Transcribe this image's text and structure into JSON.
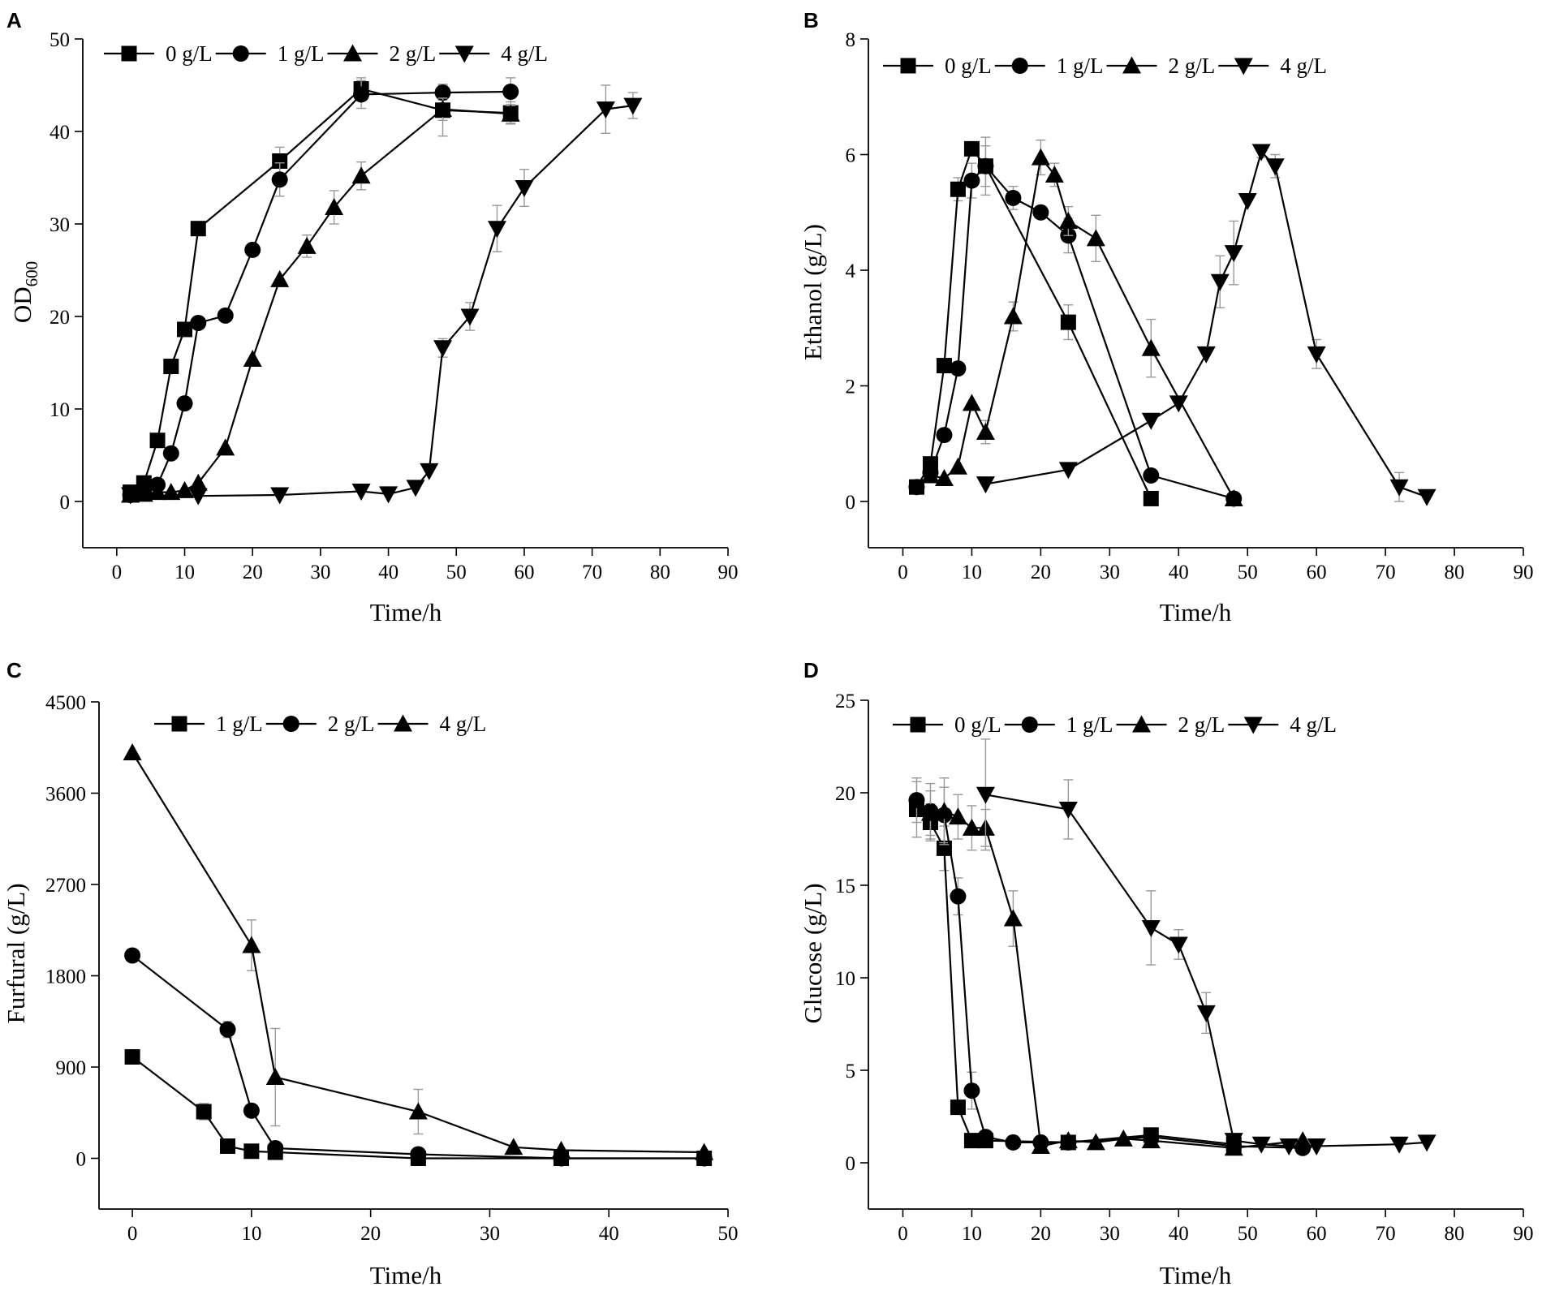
{
  "figure": {
    "background": "#ffffff",
    "ink": "#000000",
    "error_bar_color": "#999999"
  },
  "chart_data": [
    {
      "id": "A",
      "panel_label": "A",
      "type": "line",
      "ylabel_main": "OD",
      "ylabel_sub": "600",
      "xlabel": "Time/h",
      "xlim": [
        -5,
        90
      ],
      "ylim": [
        -5,
        50
      ],
      "xticks": [
        0,
        10,
        20,
        30,
        40,
        50,
        60,
        70,
        80,
        90
      ],
      "yticks": [
        0,
        10,
        20,
        30,
        40,
        50
      ],
      "grid": false,
      "legend_position": "top-left",
      "series": [
        {
          "name": "0 g/L",
          "marker": "square",
          "x": [
            2,
            4,
            6,
            8,
            10,
            12,
            24,
            36,
            48,
            58
          ],
          "y": [
            1.0,
            2.0,
            6.6,
            14.6,
            18.6,
            29.5,
            36.8,
            44.6,
            42.3,
            42.0
          ],
          "err": [
            0,
            0,
            0,
            0,
            0,
            0,
            1.5,
            1.2,
            2.8,
            1.2
          ]
        },
        {
          "name": "1 g/L",
          "marker": "circle",
          "x": [
            2,
            4,
            6,
            8,
            10,
            12,
            16,
            20,
            24,
            36,
            48,
            58
          ],
          "y": [
            0.7,
            1.0,
            1.8,
            5.2,
            10.6,
            19.3,
            20.1,
            27.2,
            34.8,
            44.0,
            44.2,
            44.3
          ],
          "err": [
            0,
            0,
            0,
            0,
            0,
            0,
            0,
            0,
            1.8,
            1.5,
            0.8,
            1.5
          ]
        },
        {
          "name": "2 g/L",
          "marker": "triangle-up",
          "x": [
            2,
            4,
            6,
            8,
            10,
            12,
            16,
            20,
            24,
            28,
            32,
            36,
            48,
            58
          ],
          "y": [
            0.7,
            0.8,
            1.0,
            1.0,
            1.2,
            2.0,
            5.8,
            15.4,
            24.0,
            27.6,
            31.8,
            35.2,
            42.4,
            41.9
          ],
          "err": [
            0,
            0,
            0,
            0,
            0,
            0,
            0,
            0,
            0,
            1.2,
            1.8,
            1.5,
            1.2,
            1.0
          ]
        },
        {
          "name": "4 g/L",
          "marker": "triangle-down",
          "x": [
            2,
            12,
            24,
            36,
            40,
            44,
            46,
            48,
            52,
            56,
            60,
            72,
            76
          ],
          "y": [
            0.7,
            0.6,
            0.7,
            1.1,
            0.8,
            1.5,
            3.3,
            16.6,
            20.0,
            29.5,
            33.9,
            42.4,
            42.8
          ],
          "err": [
            0,
            0,
            0,
            0,
            0,
            0,
            0,
            1.0,
            1.5,
            2.5,
            2.0,
            2.6,
            1.4
          ]
        }
      ]
    },
    {
      "id": "B",
      "panel_label": "B",
      "type": "line",
      "ylabel_main": "Ethanol (g/L)",
      "ylabel_sub": "",
      "xlabel": "Time/h",
      "xlim": [
        -5,
        90
      ],
      "ylim": [
        -0.8,
        8
      ],
      "xticks": [
        0,
        10,
        20,
        30,
        40,
        50,
        60,
        70,
        80,
        90
      ],
      "yticks": [
        0,
        2,
        4,
        6,
        8
      ],
      "grid": false,
      "legend_position": "top",
      "series": [
        {
          "name": "0 g/L",
          "marker": "square",
          "x": [
            2,
            4,
            6,
            8,
            10,
            12,
            24,
            36
          ],
          "y": [
            0.25,
            0.65,
            2.35,
            5.4,
            6.1,
            5.8,
            3.1,
            0.05
          ],
          "err": [
            0,
            0,
            0,
            0.2,
            0,
            0.35,
            0.3,
            0
          ]
        },
        {
          "name": "1 g/L",
          "marker": "circle",
          "x": [
            2,
            4,
            6,
            8,
            10,
            12,
            16,
            20,
            24,
            36,
            48
          ],
          "y": [
            0.25,
            0.5,
            1.15,
            2.3,
            5.55,
            5.8,
            5.25,
            5.0,
            4.6,
            0.45,
            0.05
          ],
          "err": [
            0,
            0,
            0,
            0,
            0.3,
            0.5,
            0.2,
            0,
            0.3,
            0,
            0
          ]
        },
        {
          "name": "2 g/L",
          "marker": "triangle-up",
          "x": [
            4,
            6,
            8,
            10,
            12,
            16,
            20,
            22,
            24,
            28,
            36,
            48
          ],
          "y": [
            0.45,
            0.4,
            0.6,
            1.7,
            1.2,
            3.2,
            5.95,
            5.65,
            4.85,
            4.55,
            2.65,
            0.05
          ],
          "err": [
            0,
            0,
            0,
            0,
            0.2,
            0.25,
            0.3,
            0.2,
            0.25,
            0.4,
            0.5,
            0
          ]
        },
        {
          "name": "4 g/L",
          "marker": "triangle-down",
          "x": [
            12,
            24,
            36,
            40,
            44,
            46,
            48,
            50,
            52,
            54,
            60,
            72,
            76
          ],
          "y": [
            0.3,
            0.55,
            1.4,
            1.7,
            2.55,
            3.8,
            4.3,
            5.2,
            6.05,
            5.8,
            2.55,
            0.25,
            0.08
          ],
          "err": [
            0,
            0,
            0,
            0,
            0,
            0.45,
            0.55,
            0,
            0.1,
            0.2,
            0.25,
            0.25,
            0
          ]
        }
      ]
    },
    {
      "id": "C",
      "panel_label": "C",
      "type": "line",
      "ylabel_main": "Furfural (g/L)",
      "ylabel_sub": "",
      "xlabel": "Time/h",
      "xlim": [
        -2.8,
        50
      ],
      "ylim": [
        -500,
        4500
      ],
      "xticks": [
        0,
        10,
        20,
        30,
        40,
        50
      ],
      "yticks": [
        0,
        900,
        1800,
        2700,
        3600,
        4500
      ],
      "grid": false,
      "legend_position": "top",
      "series": [
        {
          "name": "1 g/L",
          "marker": "square",
          "x": [
            0,
            6,
            8,
            10,
            12,
            24,
            36,
            48
          ],
          "y": [
            1000,
            460,
            120,
            70,
            60,
            0,
            0,
            0
          ],
          "err": [
            0,
            80,
            0,
            0,
            0,
            0,
            0,
            0
          ]
        },
        {
          "name": "2 g/L",
          "marker": "circle",
          "x": [
            0,
            8,
            10,
            12,
            24,
            36,
            48
          ],
          "y": [
            2000,
            1270,
            470,
            100,
            40,
            0,
            0
          ],
          "err": [
            0,
            80,
            0,
            0,
            0,
            0,
            0
          ]
        },
        {
          "name": "4 g/L",
          "marker": "triangle-up",
          "x": [
            0,
            10,
            12,
            24,
            32,
            36,
            48
          ],
          "y": [
            4000,
            2100,
            800,
            460,
            110,
            80,
            60
          ],
          "err": [
            0,
            250,
            480,
            220,
            0,
            0,
            0
          ]
        }
      ]
    },
    {
      "id": "D",
      "panel_label": "D",
      "type": "line",
      "ylabel_main": "Glucose (g/L)",
      "ylabel_sub": "",
      "xlabel": "Time/h",
      "xlim": [
        -5,
        90
      ],
      "ylim": [
        -2.5,
        25
      ],
      "xticks": [
        0,
        10,
        20,
        30,
        40,
        50,
        60,
        70,
        80,
        90
      ],
      "yticks": [
        0,
        5,
        10,
        15,
        20,
        25
      ],
      "grid": false,
      "legend_position": "top",
      "series": [
        {
          "name": "0 g/L",
          "marker": "square",
          "x": [
            2,
            4,
            6,
            8,
            10,
            12,
            24,
            36,
            48
          ],
          "y": [
            19.1,
            18.4,
            17.0,
            3.0,
            1.2,
            1.2,
            1.1,
            1.5,
            1.0
          ],
          "err": [
            1.5,
            1.0,
            1.2,
            0,
            0,
            0,
            0,
            0.2,
            0
          ]
        },
        {
          "name": "1 g/L",
          "marker": "circle",
          "x": [
            2,
            4,
            6,
            8,
            10,
            12,
            16,
            20,
            24,
            36,
            48,
            58
          ],
          "y": [
            19.6,
            19.0,
            18.8,
            14.4,
            3.9,
            1.4,
            1.1,
            1.1,
            1.1,
            1.4,
            0.9,
            0.8
          ],
          "err": [
            1.2,
            1.5,
            1.5,
            1.0,
            1.0,
            0,
            0,
            0,
            0,
            0,
            0,
            0
          ]
        },
        {
          "name": "2 g/L",
          "marker": "triangle-up",
          "x": [
            4,
            6,
            8,
            10,
            12,
            16,
            20,
            24,
            28,
            32,
            36,
            48,
            58
          ],
          "y": [
            18.9,
            19.0,
            18.7,
            18.1,
            18.1,
            13.2,
            0.9,
            1.2,
            1.1,
            1.3,
            1.2,
            0.8,
            1.2
          ],
          "err": [
            1.2,
            1.8,
            1.2,
            1.2,
            1.0,
            1.5,
            0,
            0,
            0,
            0,
            0,
            0,
            0
          ]
        },
        {
          "name": "4 g/L",
          "marker": "triangle-down",
          "x": [
            12,
            24,
            36,
            40,
            44,
            48,
            52,
            56,
            60,
            72,
            76
          ],
          "y": [
            19.9,
            19.1,
            12.7,
            11.8,
            8.1,
            1.2,
            1.0,
            0.9,
            0.9,
            1.0,
            1.1
          ],
          "err": [
            3.0,
            1.6,
            2.0,
            0.8,
            1.1,
            0,
            0,
            0,
            0,
            0,
            0
          ]
        }
      ]
    }
  ]
}
